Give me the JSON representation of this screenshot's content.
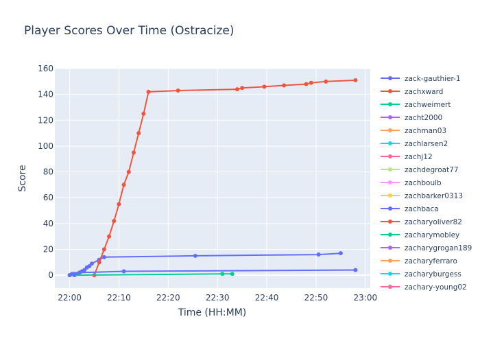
{
  "chart_data": {
    "type": "line",
    "title": "Player Scores Over Time (Ostracize)",
    "xlabel": "Time (HH:MM)",
    "ylabel": "Score",
    "xlim": [
      "21:57",
      "23:01"
    ],
    "ylim": [
      -10,
      160
    ],
    "x_ticks": [
      "22:00",
      "22:10",
      "22:20",
      "22:30",
      "22:40",
      "22:50",
      "23:00"
    ],
    "y_ticks": [
      0,
      20,
      40,
      60,
      80,
      100,
      120,
      140,
      160
    ],
    "grid": true,
    "legend_position": "right",
    "series": [
      {
        "name": "zack-gauthier-1",
        "color": "#636efa",
        "points": [
          [
            "22:00",
            0
          ],
          [
            "22:01",
            0
          ],
          [
            "22:01.5",
            1
          ],
          [
            "22:02",
            2
          ],
          [
            "22:02.5",
            3
          ],
          [
            "22:03",
            4
          ],
          [
            "22:03.5",
            6
          ],
          [
            "22:04",
            7
          ],
          [
            "22:04.5",
            9
          ],
          [
            "22:06",
            12
          ],
          [
            "22:07",
            14
          ],
          [
            "22:25.5",
            15
          ],
          [
            "22:50.5",
            16
          ],
          [
            "22:55",
            17
          ]
        ]
      },
      {
        "name": "zachxward",
        "color": "#ef553b",
        "points": [
          [
            "22:05",
            0
          ],
          [
            "22:06",
            10
          ],
          [
            "22:07",
            20
          ],
          [
            "22:08",
            30
          ],
          [
            "22:09",
            42
          ],
          [
            "22:10",
            55
          ],
          [
            "22:11",
            70
          ],
          [
            "22:12",
            80
          ],
          [
            "22:13",
            95
          ],
          [
            "22:14",
            110
          ],
          [
            "22:15",
            125
          ],
          [
            "22:16",
            142
          ],
          [
            "22:22",
            143
          ],
          [
            "22:34",
            144
          ],
          [
            "22:35",
            145
          ],
          [
            "22:39.5",
            146
          ],
          [
            "22:43.5",
            147
          ],
          [
            "22:48",
            148
          ],
          [
            "22:49",
            149
          ],
          [
            "22:52",
            150
          ],
          [
            "22:58",
            151
          ]
        ]
      },
      {
        "name": "zachweimert",
        "color": "#00cc96",
        "points": [
          [
            "22:00",
            0
          ],
          [
            "22:31",
            1
          ],
          [
            "22:33",
            1
          ]
        ]
      },
      {
        "name": "zacht2000",
        "color": "#ab63fa",
        "points": []
      },
      {
        "name": "zachman03",
        "color": "#ffa15a",
        "points": []
      },
      {
        "name": "zachlarsen2",
        "color": "#19d3f3",
        "points": []
      },
      {
        "name": "zachj12",
        "color": "#ff6692",
        "points": []
      },
      {
        "name": "zachdegroat77",
        "color": "#b6e880",
        "points": []
      },
      {
        "name": "zachboulb",
        "color": "#ff97ff",
        "points": []
      },
      {
        "name": "zachbarker0313",
        "color": "#fecb52",
        "points": [
          [
            "22:00",
            0
          ]
        ]
      },
      {
        "name": "zachbaca",
        "color": "#636efa",
        "points": [
          [
            "22:00",
            0
          ],
          [
            "22:00.5",
            1
          ],
          [
            "22:01",
            1
          ],
          [
            "22:02",
            2
          ],
          [
            "22:11",
            3
          ],
          [
            "22:58",
            4
          ]
        ]
      },
      {
        "name": "zacharyoliver82",
        "color": "#ef553b",
        "points": []
      },
      {
        "name": "zacharymobley",
        "color": "#00cc96",
        "points": []
      },
      {
        "name": "zacharygrogan189",
        "color": "#ab63fa",
        "points": []
      },
      {
        "name": "zacharyferraro",
        "color": "#ffa15a",
        "points": []
      },
      {
        "name": "zacharyburgess",
        "color": "#19d3f3",
        "points": []
      },
      {
        "name": "zachary-young02",
        "color": "#ff6692",
        "points": []
      }
    ]
  }
}
